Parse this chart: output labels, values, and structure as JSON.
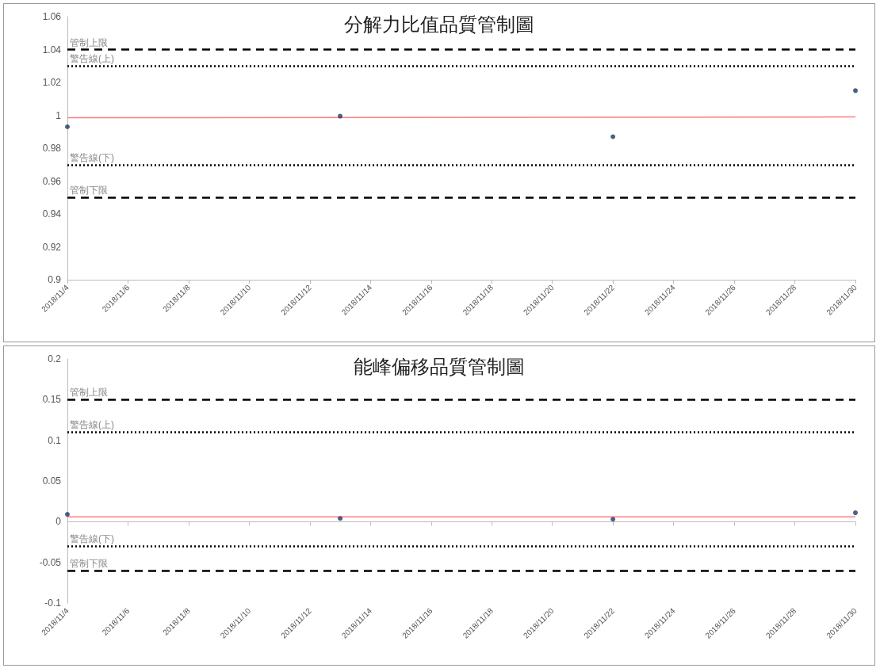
{
  "chart_data": [
    {
      "type": "scatter",
      "title": "分解力比值品質管制圖",
      "x": [
        "2018-11-04",
        "2018-11-13",
        "2018-11-22",
        "2018-11-30"
      ],
      "series": [
        {
          "color": "#1f3864",
          "values": [
            0.993,
            0.9995,
            0.987,
            1.015
          ]
        },
        {
          "type": "line",
          "color": "#ff7c80",
          "x": [
            "2018-11-04",
            "2018-11-30"
          ],
          "values": [
            0.9985,
            0.999
          ],
          "marker": "none"
        }
      ],
      "marker": "circle",
      "xlim": [
        "2018-11-04",
        "2018-11-30"
      ],
      "xticks": [
        {
          "value": "2018-11-04",
          "label": "2018/11/4"
        },
        {
          "value": "2018-11-06",
          "label": "2018/11/6"
        },
        {
          "value": "2018-11-08",
          "label": "2018/11/8"
        },
        {
          "value": "2018-11-10",
          "label": "2018/11/10"
        },
        {
          "value": "2018-11-12",
          "label": "2018/11/12"
        },
        {
          "value": "2018-11-14",
          "label": "2018/11/14"
        },
        {
          "value": "2018-11-16",
          "label": "2018/11/16"
        },
        {
          "value": "2018-11-18",
          "label": "2018/11/18"
        },
        {
          "value": "2018-11-20",
          "label": "2018/11/20"
        },
        {
          "value": "2018-11-22",
          "label": "2018/11/22"
        },
        {
          "value": "2018-11-24",
          "label": "2018/11/24"
        },
        {
          "value": "2018-11-26",
          "label": "2018/11/26"
        },
        {
          "value": "2018-11-28",
          "label": "2018/11/28"
        },
        {
          "value": "2018-11-30",
          "label": "2018/11/30"
        }
      ],
      "ylim": [
        0.9,
        1.06
      ],
      "yticks": [
        0.9,
        0.92,
        0.94,
        0.96,
        0.98,
        1,
        1.02,
        1.04,
        1.06
      ],
      "ref_lines": [
        {
          "axis": "y",
          "value": 1.04,
          "label": "管制上限",
          "color": "#000000",
          "line_style": "dashed"
        },
        {
          "axis": "y",
          "value": 1.03,
          "label": "警告線(上)",
          "color": "#000000",
          "line_style": "dotted"
        },
        {
          "axis": "y",
          "value": 0.97,
          "label": "警告線(下)",
          "color": "#000000",
          "line_style": "dotted"
        },
        {
          "axis": "y",
          "value": 0.95,
          "label": "管制下限",
          "color": "#000000",
          "line_style": "dashed"
        }
      ],
      "grid": false
    },
    {
      "type": "scatter",
      "title": "能峰偏移品質管制圖",
      "x": [
        "2018-11-04",
        "2018-11-13",
        "2018-11-22",
        "2018-11-30"
      ],
      "series": [
        {
          "color": "#1f3864",
          "values": [
            0.009,
            0.004,
            0.003,
            0.011
          ]
        },
        {
          "type": "line",
          "color": "#ff7c80",
          "x": [
            "2018-11-04",
            "2018-11-30"
          ],
          "values": [
            0.006,
            0.006
          ],
          "marker": "none"
        }
      ],
      "marker": "circle",
      "xlim": [
        "2018-11-04",
        "2018-11-30"
      ],
      "xticks": [
        {
          "value": "2018-11-04",
          "label": "2018/11/4"
        },
        {
          "value": "2018-11-06",
          "label": "2018/11/6"
        },
        {
          "value": "2018-11-08",
          "label": "2018/11/8"
        },
        {
          "value": "2018-11-10",
          "label": "2018/11/10"
        },
        {
          "value": "2018-11-12",
          "label": "2018/11/12"
        },
        {
          "value": "2018-11-14",
          "label": "2018/11/14"
        },
        {
          "value": "2018-11-16",
          "label": "2018/11/16"
        },
        {
          "value": "2018-11-18",
          "label": "2018/11/18"
        },
        {
          "value": "2018-11-20",
          "label": "2018/11/20"
        },
        {
          "value": "2018-11-22",
          "label": "2018/11/22"
        },
        {
          "value": "2018-11-24",
          "label": "2018/11/24"
        },
        {
          "value": "2018-11-26",
          "label": "2018/11/26"
        },
        {
          "value": "2018-11-28",
          "label": "2018/11/28"
        },
        {
          "value": "2018-11-30",
          "label": "2018/11/30"
        }
      ],
      "ylim": [
        -0.1,
        0.2
      ],
      "yticks": [
        -0.1,
        -0.05,
        0,
        0.05,
        0.1,
        0.15,
        0.2
      ],
      "ref_lines": [
        {
          "axis": "y",
          "value": 0.15,
          "label": "管制上限",
          "color": "#000000",
          "line_style": "dashed"
        },
        {
          "axis": "y",
          "value": 0.11,
          "label": "警告線(上)",
          "color": "#000000",
          "line_style": "dotted"
        },
        {
          "axis": "y",
          "value": -0.03,
          "label": "警告線(下)",
          "color": "#000000",
          "line_style": "dotted"
        },
        {
          "axis": "y",
          "value": -0.06,
          "label": "管制下限",
          "color": "#000000",
          "line_style": "dashed"
        }
      ],
      "grid": false
    }
  ]
}
